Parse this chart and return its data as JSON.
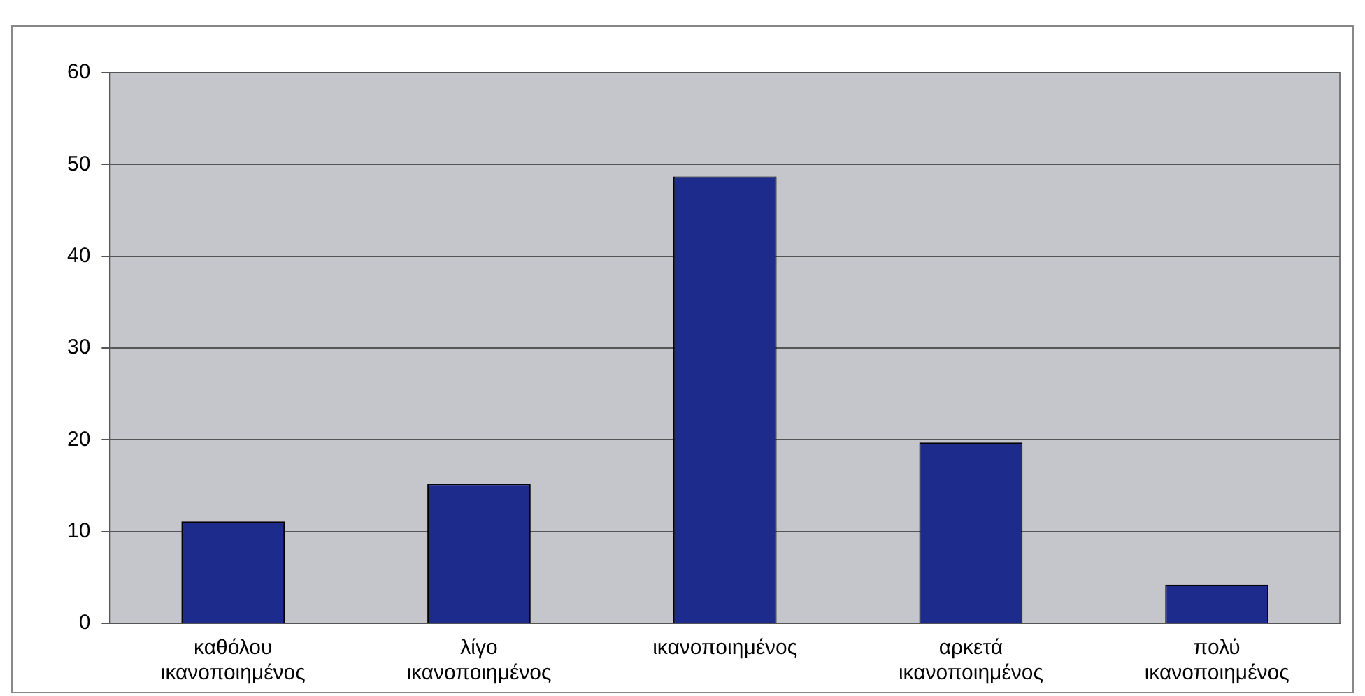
{
  "chart_data": {
    "type": "bar",
    "categories": [
      "καθόλου ικανοποιημένος",
      "λίγο ικανοποιημένος",
      "ικανοποιημένος",
      "αρκετά ικανοποιημένος",
      "πολύ ικανοποιημένος"
    ],
    "values": [
      11.1,
      15.2,
      48.7,
      19.7,
      4.2
    ],
    "color": "#1c2b8c",
    "ylim": [
      0,
      60
    ],
    "yticks": [
      0,
      10,
      20,
      30,
      40,
      50,
      60
    ],
    "grid": "y",
    "legend": false
  }
}
